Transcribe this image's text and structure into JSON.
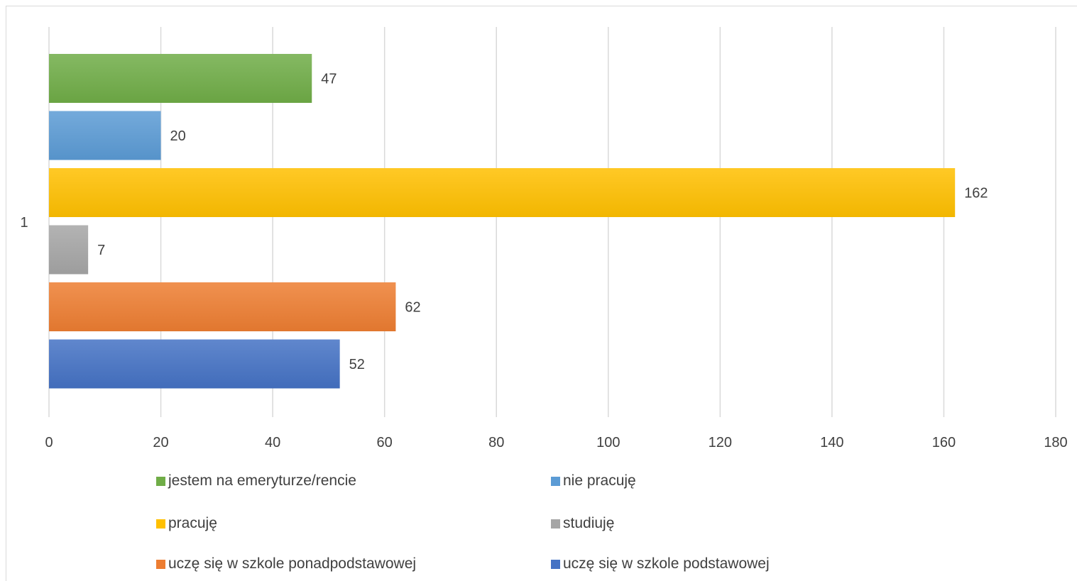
{
  "chart_data": {
    "type": "bar",
    "orientation": "horizontal",
    "categories": [
      "1"
    ],
    "series": [
      {
        "name": "jestem na emeryturze/rencie",
        "values": [
          47
        ],
        "color": "#70ad47"
      },
      {
        "name": "nie pracuję",
        "values": [
          20
        ],
        "color": "#5b9bd5"
      },
      {
        "name": "pracuję",
        "values": [
          162
        ],
        "color": "#ffc000"
      },
      {
        "name": "studiuję",
        "values": [
          7
        ],
        "color": "#a5a5a5"
      },
      {
        "name": "uczę się w szkole ponadpodstawowej",
        "values": [
          62
        ],
        "color": "#ed7d31"
      },
      {
        "name": "uczę się w szkole podstawowej",
        "values": [
          52
        ],
        "color": "#4472c4"
      }
    ],
    "xlim": [
      0,
      180
    ],
    "xticks": [
      0,
      20,
      40,
      60,
      80,
      100,
      120,
      140,
      160,
      180
    ],
    "xtick_labels": [
      "0",
      "20",
      "40",
      "60",
      "80",
      "100",
      "120",
      "140",
      "160",
      "180"
    ],
    "grid": true,
    "legend_position": "bottom",
    "title": "",
    "xlabel": "",
    "ylabel": ""
  }
}
